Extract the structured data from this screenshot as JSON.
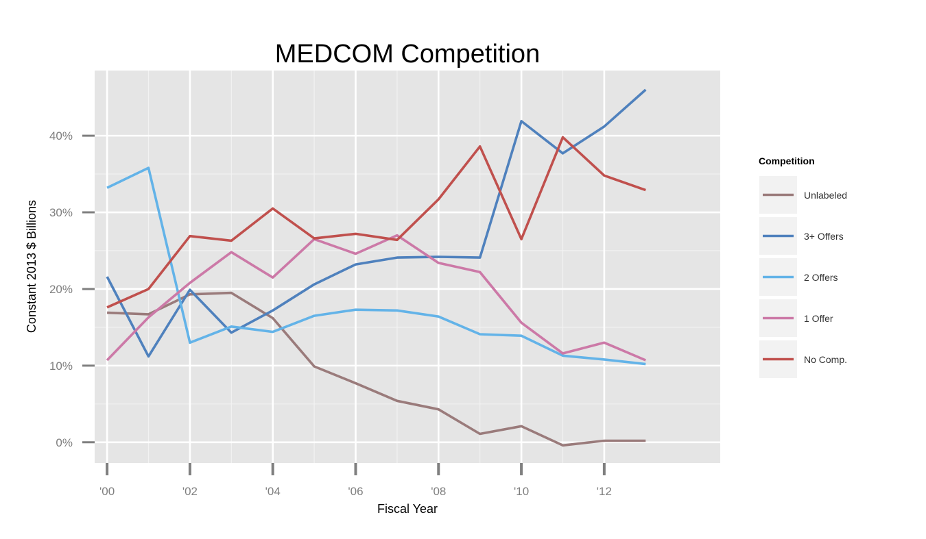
{
  "chart_data": {
    "type": "line",
    "title": "MEDCOM Competition",
    "xlabel": "Fiscal Year",
    "ylabel": "Constant 2013 $ Billions",
    "x": [
      2000,
      2001,
      2002,
      2003,
      2004,
      2005,
      2006,
      2007,
      2008,
      2009,
      2010,
      2011,
      2012,
      2013
    ],
    "x_ticks": [
      2000,
      2002,
      2004,
      2006,
      2008,
      2010,
      2012
    ],
    "x_tick_labels": [
      "'00",
      "'02",
      "'04",
      "'06",
      "'08",
      "'10",
      "'12"
    ],
    "y_ticks": [
      0,
      10,
      20,
      30,
      40
    ],
    "y_tick_labels": [
      "0%",
      "10%",
      "20%",
      "30%",
      "40%"
    ],
    "xlim": [
      1999.7,
      2014.8
    ],
    "ylim": [
      -2.7,
      48.5
    ],
    "grid": true,
    "legend_title": "Competition",
    "legend_position": "right",
    "series": [
      {
        "name": "Unlabeled",
        "color": "#9a7b7b",
        "values": [
          16.9,
          16.7,
          19.3,
          19.5,
          16.2,
          9.9,
          7.7,
          5.4,
          4.3,
          1.1,
          2.1,
          -0.4,
          0.2,
          0.2
        ]
      },
      {
        "name": "3+ Offers",
        "color": "#4f81bd",
        "values": [
          21.6,
          11.2,
          19.9,
          14.3,
          17.2,
          20.6,
          23.2,
          24.1,
          24.2,
          24.1,
          41.9,
          37.7,
          41.2,
          46.0
        ]
      },
      {
        "name": "2 Offers",
        "color": "#63b3e8",
        "values": [
          33.2,
          35.8,
          13.0,
          15.1,
          14.4,
          16.5,
          17.3,
          17.2,
          16.4,
          14.1,
          13.9,
          11.3,
          10.8,
          10.2
        ]
      },
      {
        "name": "1 Offer",
        "color": "#cc79a7",
        "values": [
          10.7,
          16.3,
          20.8,
          24.8,
          21.5,
          26.5,
          24.6,
          27.0,
          23.4,
          22.2,
          15.6,
          11.6,
          13.0,
          10.7
        ]
      },
      {
        "name": "No Comp.",
        "color": "#c0504d",
        "values": [
          17.6,
          20.0,
          26.9,
          26.3,
          30.5,
          26.6,
          27.2,
          26.4,
          31.7,
          38.6,
          26.5,
          39.8,
          34.8,
          32.9
        ]
      }
    ]
  }
}
